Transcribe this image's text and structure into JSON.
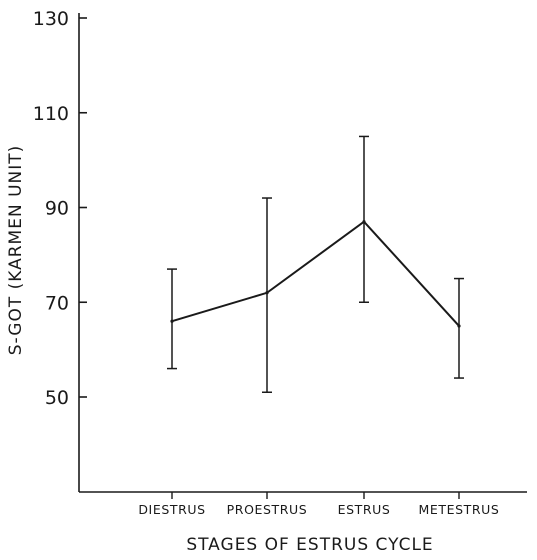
{
  "chart_data": {
    "type": "line",
    "title": "",
    "xlabel": "STAGES OF ESTRUS CYCLE",
    "ylabel": "S-GOT (KARMEN UNIT)",
    "categories": [
      "DIESTRUS",
      "PROESTRUS",
      "ESTRUS",
      "METESTRUS"
    ],
    "ylim": [
      30,
      130
    ],
    "yticks": [
      50,
      70,
      90,
      110,
      130
    ],
    "ytick_labels": [
      "50",
      "70",
      "90",
      "110",
      "130"
    ],
    "grid": false,
    "series": [
      {
        "values": [
          66,
          72,
          87,
          65
        ],
        "error_low": [
          56,
          51,
          70,
          54
        ],
        "error_high": [
          77,
          92,
          105,
          75
        ]
      }
    ],
    "colors": {
      "line": "#1a1a1a",
      "axis": "#1a1a1a"
    }
  }
}
